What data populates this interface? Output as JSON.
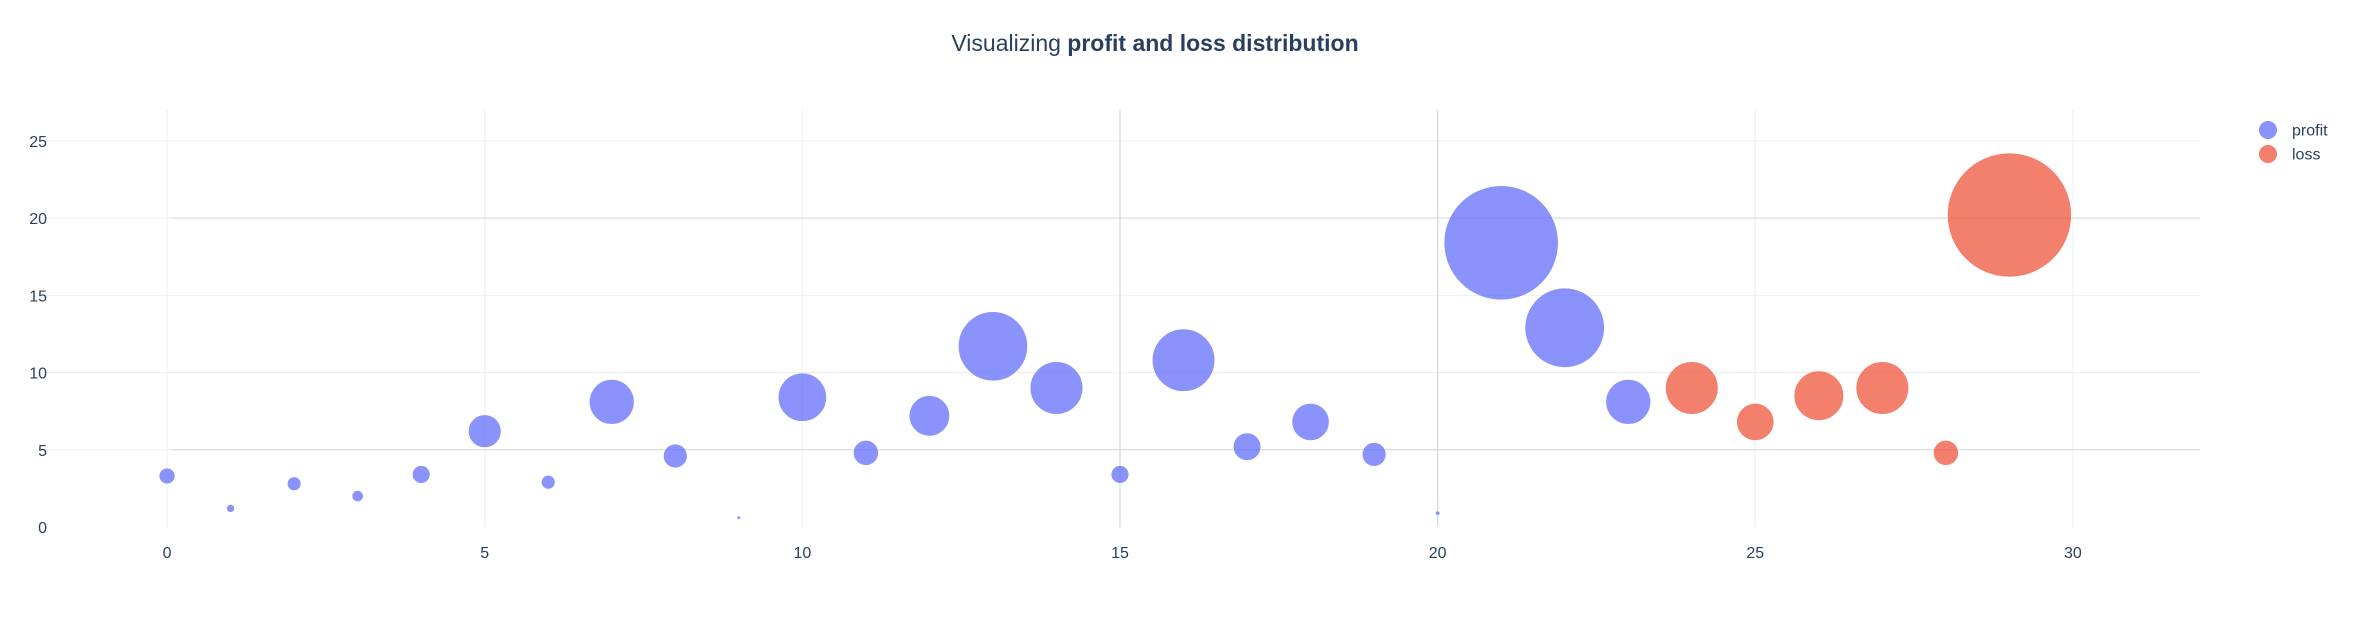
{
  "title": {
    "prefix": "Visualizing ",
    "bold": "profit and loss distribution"
  },
  "chart_data": {
    "type": "scatter",
    "subtype": "bubble",
    "title": "Visualizing profit and loss distribution",
    "xlabel": "",
    "ylabel": "",
    "xlim": [
      -2,
      32
    ],
    "ylim": [
      0,
      27
    ],
    "x_ticks": [
      0,
      5,
      10,
      15,
      20,
      25,
      30
    ],
    "y_ticks": [
      0,
      5,
      10,
      15,
      20,
      25
    ],
    "grid": true,
    "legend_position": "top-right",
    "series": [
      {
        "name": "profit",
        "color": "#636efa",
        "points": [
          {
            "x": 0,
            "y": 3.3,
            "size": 4
          },
          {
            "x": 1,
            "y": 1.2,
            "size": 1
          },
          {
            "x": 2,
            "y": 2.8,
            "size": 3
          },
          {
            "x": 3,
            "y": 2.0,
            "size": 2
          },
          {
            "x": 4,
            "y": 3.4,
            "size": 5
          },
          {
            "x": 5,
            "y": 6.2,
            "size": 17
          },
          {
            "x": 6,
            "y": 2.9,
            "size": 3
          },
          {
            "x": 7,
            "y": 8.1,
            "size": 32
          },
          {
            "x": 8,
            "y": 4.6,
            "size": 9
          },
          {
            "x": 9,
            "y": 0.6,
            "size": 0.2
          },
          {
            "x": 10,
            "y": 8.4,
            "size": 37
          },
          {
            "x": 11,
            "y": 4.8,
            "size": 10
          },
          {
            "x": 12,
            "y": 7.2,
            "size": 26
          },
          {
            "x": 13,
            "y": 11.7,
            "size": 76
          },
          {
            "x": 14,
            "y": 9.0,
            "size": 44
          },
          {
            "x": 15,
            "y": 3.4,
            "size": 5
          },
          {
            "x": 16,
            "y": 10.8,
            "size": 62
          },
          {
            "x": 17,
            "y": 5.2,
            "size": 12
          },
          {
            "x": 18,
            "y": 6.8,
            "size": 22
          },
          {
            "x": 19,
            "y": 4.7,
            "size": 9
          },
          {
            "x": 20,
            "y": 0.9,
            "size": 0.3
          },
          {
            "x": 21,
            "y": 18.4,
            "size": 207
          },
          {
            "x": 22,
            "y": 12.9,
            "size": 100
          },
          {
            "x": 23,
            "y": 8.1,
            "size": 32
          }
        ]
      },
      {
        "name": "loss",
        "color": "#ef553b",
        "points": [
          {
            "x": 24,
            "y": 9.0,
            "size": 44
          },
          {
            "x": 25,
            "y": 6.8,
            "size": 22
          },
          {
            "x": 26,
            "y": 8.5,
            "size": 39
          },
          {
            "x": 27,
            "y": 9.0,
            "size": 44
          },
          {
            "x": 28,
            "y": 4.8,
            "size": 10
          },
          {
            "x": 29,
            "y": 20.2,
            "size": 244
          }
        ]
      }
    ]
  }
}
